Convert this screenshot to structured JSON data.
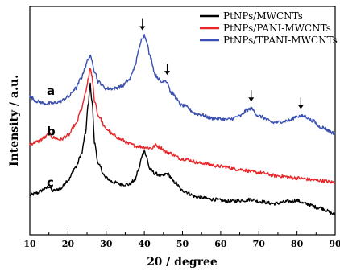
{
  "chart_data": {
    "type": "line",
    "xlabel": "2θ / degree",
    "ylabel": "Intensity / a.u.",
    "xlim": [
      10,
      90
    ],
    "ylim": [
      0,
      100
    ],
    "xticks": [
      "10",
      "20",
      "30",
      "40",
      "50",
      "60",
      "70",
      "80",
      "90"
    ],
    "yticks": "none",
    "legend_position": "top-right",
    "series": [
      {
        "name": "PtNPs/MWCNTs",
        "curve_label": "c",
        "color": "#000000",
        "points": [
          [
            10,
            16
          ],
          [
            12,
            17
          ],
          [
            14,
            19
          ],
          [
            15,
            20
          ],
          [
            16,
            18
          ],
          [
            18,
            19
          ],
          [
            20,
            23
          ],
          [
            22,
            29
          ],
          [
            23.5,
            35
          ],
          [
            24.5,
            44
          ],
          [
            25.3,
            58
          ],
          [
            25.8,
            68
          ],
          [
            26.3,
            60
          ],
          [
            27,
            40
          ],
          [
            28,
            30
          ],
          [
            30,
            24
          ],
          [
            32,
            22
          ],
          [
            34,
            21
          ],
          [
            36,
            21
          ],
          [
            37.5,
            23
          ],
          [
            38.5,
            28
          ],
          [
            39.5,
            35
          ],
          [
            40,
            37
          ],
          [
            40.5,
            34
          ],
          [
            41.5,
            28
          ],
          [
            43,
            26
          ],
          [
            44.5,
            25
          ],
          [
            46,
            26
          ],
          [
            48,
            22
          ],
          [
            50,
            18
          ],
          [
            54,
            15
          ],
          [
            58,
            14
          ],
          [
            62,
            13
          ],
          [
            66,
            13.5
          ],
          [
            68,
            14
          ],
          [
            70,
            13
          ],
          [
            74,
            12
          ],
          [
            78,
            13
          ],
          [
            80,
            13.5
          ],
          [
            82,
            12
          ],
          [
            86,
            10
          ],
          [
            90,
            7
          ]
        ]
      },
      {
        "name": "PtNPs/PANI-MWCNTs",
        "curve_label": "b",
        "color": "#e8262a",
        "points": [
          [
            10,
            40
          ],
          [
            12,
            41
          ],
          [
            14,
            43
          ],
          [
            15,
            45
          ],
          [
            16,
            43
          ],
          [
            18,
            42
          ],
          [
            20,
            44
          ],
          [
            22,
            49
          ],
          [
            23.5,
            56
          ],
          [
            24.5,
            63
          ],
          [
            25.3,
            70
          ],
          [
            25.8,
            76
          ],
          [
            26.3,
            71
          ],
          [
            27,
            60
          ],
          [
            28,
            53
          ],
          [
            30,
            47
          ],
          [
            32,
            44
          ],
          [
            34,
            42
          ],
          [
            36,
            40
          ],
          [
            38,
            39
          ],
          [
            40,
            38.5
          ],
          [
            42,
            38
          ],
          [
            43,
            39.5
          ],
          [
            44,
            38.5
          ],
          [
            46,
            36
          ],
          [
            50,
            33
          ],
          [
            55,
            31
          ],
          [
            60,
            29.5
          ],
          [
            65,
            28
          ],
          [
            70,
            26.5
          ],
          [
            75,
            25
          ],
          [
            80,
            24
          ],
          [
            85,
            23
          ],
          [
            90,
            22
          ]
        ]
      },
      {
        "name": "PtNPs/TPANI-MWCNTs",
        "curve_label": "a",
        "color": "#3a4fb0",
        "points": [
          [
            10,
            62
          ],
          [
            12,
            60
          ],
          [
            14,
            59
          ],
          [
            16,
            59
          ],
          [
            18,
            60
          ],
          [
            20,
            62
          ],
          [
            22,
            66
          ],
          [
            23.5,
            71
          ],
          [
            24.5,
            76
          ],
          [
            25.3,
            80
          ],
          [
            25.8,
            81
          ],
          [
            26.3,
            79
          ],
          [
            27,
            74
          ],
          [
            28,
            69
          ],
          [
            30,
            66
          ],
          [
            32,
            66
          ],
          [
            34,
            67
          ],
          [
            36,
            70
          ],
          [
            37.5,
            76
          ],
          [
            38.5,
            84
          ],
          [
            39.5,
            90
          ],
          [
            40,
            91
          ],
          [
            40.5,
            89
          ],
          [
            41.5,
            81
          ],
          [
            43,
            72
          ],
          [
            44.5,
            69
          ],
          [
            45.5,
            70
          ],
          [
            46,
            69
          ],
          [
            47,
            64
          ],
          [
            50,
            58
          ],
          [
            54,
            54
          ],
          [
            58,
            52
          ],
          [
            62,
            51.5
          ],
          [
            65,
            53
          ],
          [
            67,
            56
          ],
          [
            68,
            56.5
          ],
          [
            70,
            53
          ],
          [
            74,
            50
          ],
          [
            78,
            51
          ],
          [
            80,
            53
          ],
          [
            82,
            53
          ],
          [
            84,
            51
          ],
          [
            86,
            48
          ],
          [
            90,
            45
          ]
        ]
      }
    ],
    "annotations": [
      {
        "type": "arrow-down",
        "x": 39.5,
        "target_series": 2
      },
      {
        "type": "arrow-down",
        "x": 46,
        "target_series": 2
      },
      {
        "type": "arrow-down",
        "x": 68,
        "target_series": 2
      },
      {
        "type": "arrow-down",
        "x": 81,
        "target_series": 2
      }
    ]
  }
}
